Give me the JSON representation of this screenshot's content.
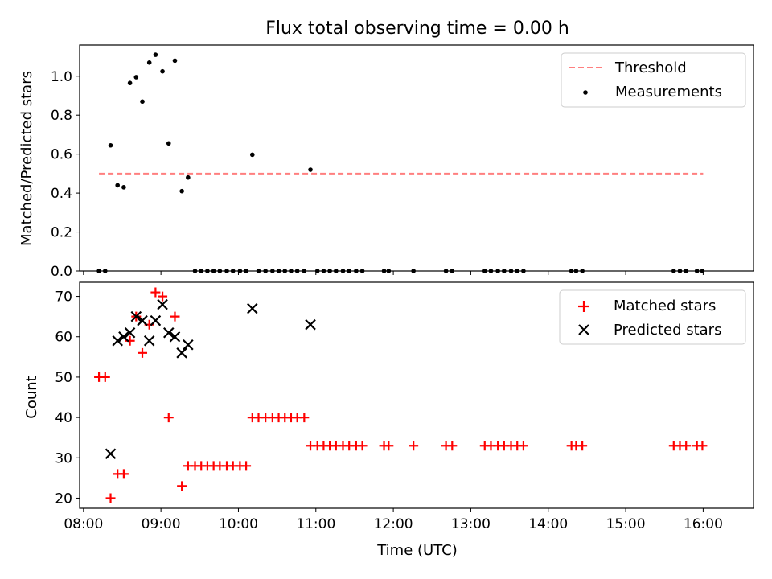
{
  "chart_data": [
    {
      "type": "scatter",
      "title": "Flux total observing time = 0.00 h",
      "xlabel": "",
      "ylabel": "Matched/Predicted stars",
      "xlim": [
        7.95,
        16.65
      ],
      "ylim": [
        0.0,
        1.16
      ],
      "yticks": [
        0.0,
        0.2,
        0.4,
        0.6,
        0.8,
        1.0
      ],
      "ytick_labels": [
        "0.0",
        "0.2",
        "0.4",
        "0.6",
        "0.8",
        "1.0"
      ],
      "legend": {
        "position": "top-right",
        "entries": [
          {
            "label": "Threshold",
            "color": "#ff7f7f",
            "style": "dashed-line"
          },
          {
            "label": "Measurements",
            "color": "#000000",
            "style": "dot"
          }
        ]
      },
      "threshold": {
        "value": 0.5,
        "x_range": [
          8.2,
          16.0
        ],
        "color": "#ff7f7f"
      },
      "series": [
        {
          "name": "Measurements",
          "color": "#000000",
          "x": [
            8.2,
            8.28,
            8.35,
            8.44,
            8.52,
            8.6,
            8.68,
            8.76,
            8.85,
            8.93,
            9.02,
            9.1,
            9.18,
            9.27,
            9.35,
            9.44,
            9.52,
            9.6,
            9.68,
            9.76,
            9.85,
            9.93,
            10.02,
            10.1,
            10.18,
            10.26,
            10.35,
            10.44,
            10.52,
            10.6,
            10.68,
            10.76,
            10.85,
            10.93,
            11.02,
            11.1,
            11.18,
            11.26,
            11.35,
            11.43,
            11.52,
            11.6,
            11.88,
            11.94,
            12.26,
            12.68,
            12.76,
            13.18,
            13.26,
            13.35,
            13.43,
            13.52,
            13.6,
            13.68,
            14.3,
            14.36,
            14.44,
            15.62,
            15.7,
            15.78,
            15.92,
            15.99
          ],
          "y": [
            0.0,
            0.0,
            0.645,
            0.44,
            0.43,
            0.965,
            0.995,
            0.87,
            1.07,
            1.11,
            1.025,
            0.655,
            1.08,
            0.41,
            0.48,
            0.0,
            0.0,
            0.0,
            0.0,
            0.0,
            0.0,
            0.0,
            0.0,
            0.0,
            0.597,
            0.0,
            0.0,
            0.0,
            0.0,
            0.0,
            0.0,
            0.0,
            0.0,
            0.52,
            0.0,
            0.0,
            0.0,
            0.0,
            0.0,
            0.0,
            0.0,
            0.0,
            0.0,
            0.0,
            0.0,
            0.0,
            0.0,
            0.0,
            0.0,
            0.0,
            0.0,
            0.0,
            0.0,
            0.0,
            0.0,
            0.0,
            0.0,
            0.0,
            0.0,
            0.0,
            0.0,
            0.0
          ]
        }
      ]
    },
    {
      "type": "scatter",
      "title": "",
      "xlabel": "Time (UTC)",
      "ylabel": "Count",
      "xlim": [
        7.95,
        16.65
      ],
      "ylim": [
        17.5,
        73.5
      ],
      "xticks": [
        8,
        9,
        10,
        11,
        12,
        13,
        14,
        15,
        16
      ],
      "xtick_labels": [
        "08:00",
        "09:00",
        "10:00",
        "11:00",
        "12:00",
        "13:00",
        "14:00",
        "15:00",
        "16:00"
      ],
      "yticks": [
        20,
        30,
        40,
        50,
        60,
        70
      ],
      "ytick_labels": [
        "20",
        "30",
        "40",
        "50",
        "60",
        "70"
      ],
      "legend": {
        "position": "top-right",
        "entries": [
          {
            "label": "Matched stars",
            "color": "#ff0000",
            "style": "plus"
          },
          {
            "label": "Predicted stars",
            "color": "#000000",
            "style": "x"
          }
        ]
      },
      "series": [
        {
          "name": "Matched stars",
          "color": "#ff0000",
          "marker": "plus",
          "x": [
            8.2,
            8.28,
            8.35,
            8.44,
            8.52,
            8.6,
            8.68,
            8.76,
            8.85,
            8.93,
            9.02,
            9.1,
            9.18,
            9.27,
            9.35,
            9.44,
            9.52,
            9.6,
            9.68,
            9.76,
            9.85,
            9.93,
            10.02,
            10.1,
            10.18,
            10.26,
            10.35,
            10.44,
            10.52,
            10.6,
            10.68,
            10.76,
            10.85,
            10.93,
            11.02,
            11.1,
            11.18,
            11.26,
            11.35,
            11.43,
            11.52,
            11.6,
            11.88,
            11.94,
            12.26,
            12.68,
            12.76,
            13.18,
            13.26,
            13.35,
            13.43,
            13.52,
            13.6,
            13.68,
            14.3,
            14.36,
            14.44,
            15.62,
            15.7,
            15.78,
            15.92,
            15.99
          ],
          "y": [
            50,
            50,
            20,
            26,
            26,
            59,
            65,
            56,
            63,
            71,
            70,
            40,
            65,
            23,
            28,
            28,
            28,
            28,
            28,
            28,
            28,
            28,
            28,
            28,
            40,
            40,
            40,
            40,
            40,
            40,
            40,
            40,
            40,
            33,
            33,
            33,
            33,
            33,
            33,
            33,
            33,
            33,
            33,
            33,
            33,
            33,
            33,
            33,
            33,
            33,
            33,
            33,
            33,
            33,
            33,
            33,
            33,
            33,
            33,
            33,
            33,
            33
          ]
        },
        {
          "name": "Predicted stars",
          "color": "#000000",
          "marker": "x",
          "x": [
            8.35,
            8.44,
            8.52,
            8.6,
            8.68,
            8.76,
            8.85,
            8.93,
            9.02,
            9.1,
            9.18,
            9.27,
            9.35,
            10.18,
            10.93
          ],
          "y": [
            31,
            59,
            60,
            61,
            65,
            64,
            59,
            64,
            68,
            61,
            60,
            56,
            58,
            67,
            63
          ]
        }
      ]
    }
  ]
}
